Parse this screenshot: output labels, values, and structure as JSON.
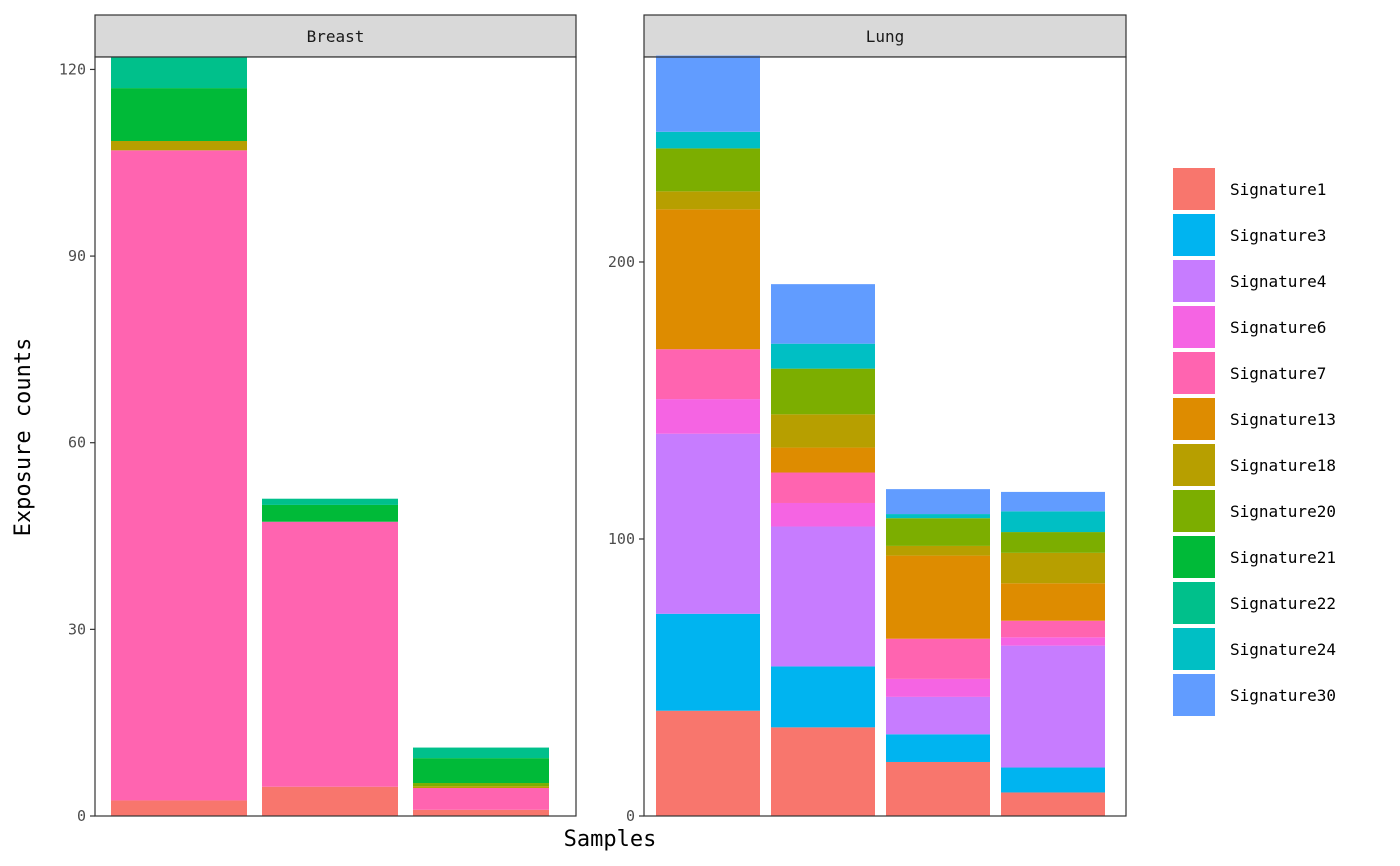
{
  "chart_data": {
    "type": "bar",
    "stacked": true,
    "faceted": true,
    "xlabel": "Samples",
    "ylabel": "Exposure counts",
    "legend_position": "right",
    "grid": false,
    "signatures": [
      "Signature1",
      "Signature3",
      "Signature4",
      "Signature6",
      "Signature7",
      "Signature13",
      "Signature18",
      "Signature20",
      "Signature21",
      "Signature22",
      "Signature24",
      "Signature30"
    ],
    "colors": {
      "Signature1": "#F8766D",
      "Signature3": "#00B4F0",
      "Signature4": "#C77CFF",
      "Signature6": "#F564E3",
      "Signature7": "#FF64B0",
      "Signature13": "#DE8C00",
      "Signature18": "#B79F00",
      "Signature20": "#7CAE00",
      "Signature21": "#00BA38",
      "Signature22": "#00C08B",
      "Signature24": "#00BFC4",
      "Signature30": "#619CFF"
    },
    "facets": [
      {
        "name": "Breast",
        "ylim": [
          0,
          122
        ],
        "yticks": [
          0,
          30,
          60,
          90,
          120
        ],
        "samples": [
          {
            "Signature22": 5,
            "Signature21": 8.5,
            "Signature18": 1.5,
            "Signature7": 104.5,
            "Signature1": 2.5
          },
          {
            "Signature22": 1,
            "Signature21": 2.7,
            "Signature7": 42.6,
            "Signature1": 4.7
          },
          {
            "Signature22": 1.7,
            "Signature21": 4,
            "Signature20": 0.5,
            "Signature18": 0.3,
            "Signature7": 3.5,
            "Signature1": 1
          }
        ]
      },
      {
        "name": "Lung",
        "ylim": [
          0,
          274
        ],
        "yticks": [
          0,
          100,
          200
        ],
        "samples": [
          {
            "Signature30": 27.5,
            "Signature24": 6,
            "Signature20": 15.5,
            "Signature18": 6.5,
            "Signature13": 50.5,
            "Signature7": 18,
            "Signature6": 12.5,
            "Signature4": 65,
            "Signature3": 35,
            "Signature1": 38
          },
          {
            "Signature30": 21.5,
            "Signature24": 9,
            "Signature20": 16.5,
            "Signature18": 12,
            "Signature13": 9,
            "Signature7": 11,
            "Signature6": 8.5,
            "Signature4": 50.5,
            "Signature3": 22,
            "Signature1": 32
          },
          {
            "Signature30": 9,
            "Signature24": 1.5,
            "Signature20": 10,
            "Signature18": 3.5,
            "Signature13": 30,
            "Signature7": 14.5,
            "Signature6": 6.5,
            "Signature4": 13.5,
            "Signature3": 10,
            "Signature1": 19.5
          },
          {
            "Signature30": 7,
            "Signature24": 7.5,
            "Signature20": 7.5,
            "Signature18": 11,
            "Signature13": 13.5,
            "Signature7": 6,
            "Signature6": 3,
            "Signature4": 44,
            "Signature3": 9,
            "Signature1": 8.5
          }
        ]
      }
    ]
  }
}
